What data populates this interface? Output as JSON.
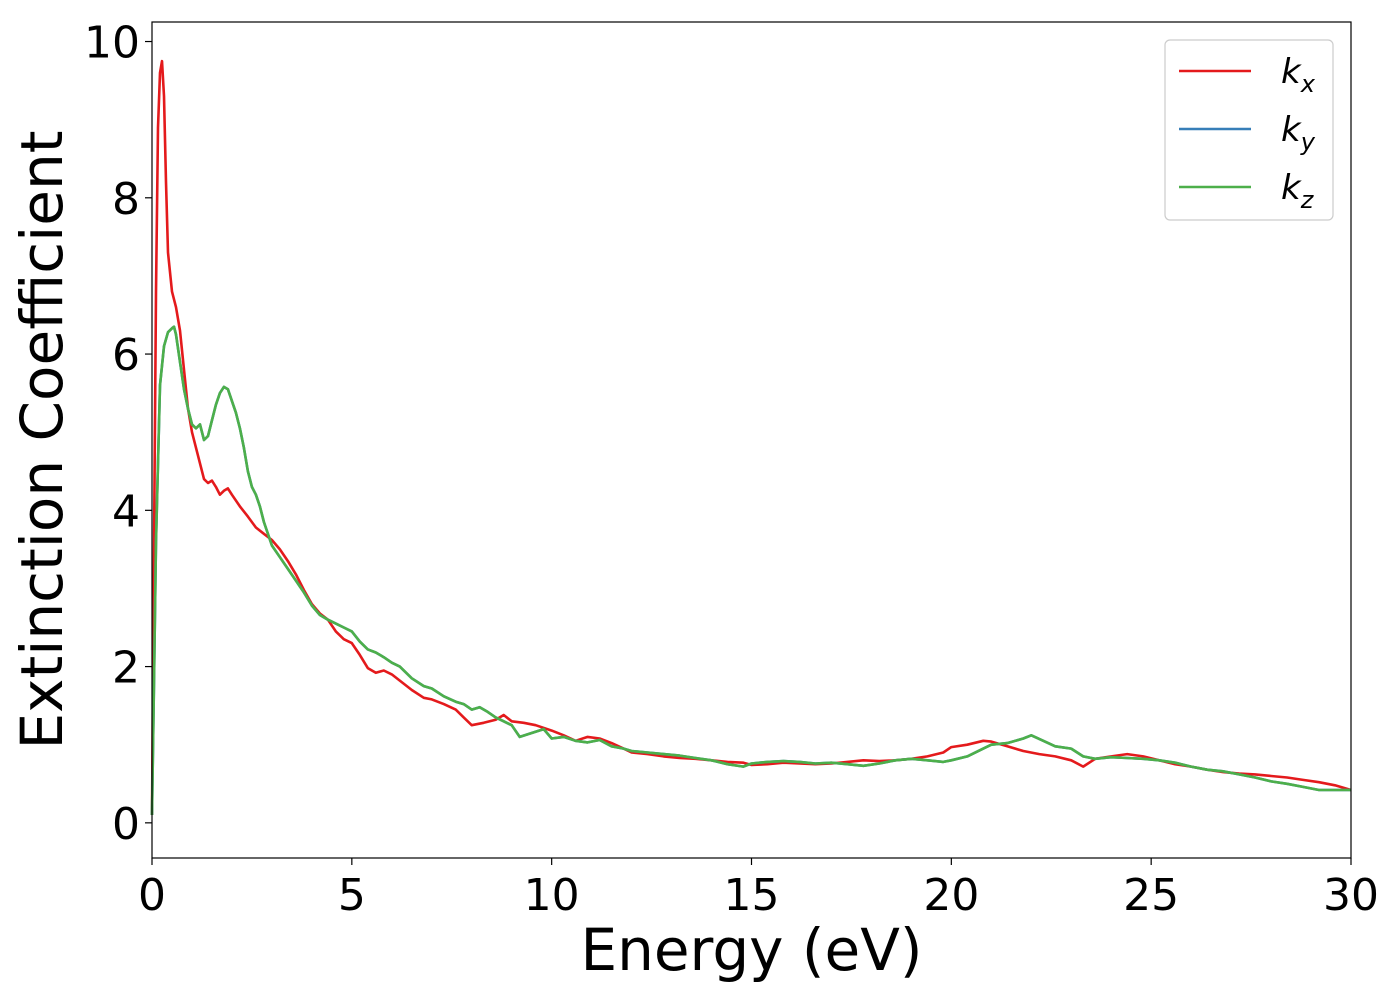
{
  "chart_data": {
    "type": "line",
    "title": "",
    "xlabel": "Energy (eV)",
    "ylabel": "Extinction Coefficient",
    "xlim": [
      0,
      30
    ],
    "ylim": [
      -0.45,
      10.25
    ],
    "xticks": [
      0,
      5,
      10,
      15,
      20,
      25,
      30
    ],
    "xtick_labels": [
      "0",
      "5",
      "10",
      "15",
      "20",
      "25",
      "30"
    ],
    "yticks": [
      0,
      2,
      4,
      6,
      8,
      10
    ],
    "ytick_labels": [
      "0",
      "2",
      "4",
      "6",
      "8",
      "10"
    ],
    "grid": false,
    "legend_position": "top-right",
    "series": [
      {
        "name": "k",
        "subscript": "x",
        "color": "#e41a1c",
        "x": [
          0,
          0.05,
          0.1,
          0.15,
          0.2,
          0.25,
          0.3,
          0.35,
          0.4,
          0.5,
          0.6,
          0.7,
          0.8,
          0.9,
          1.0,
          1.1,
          1.2,
          1.3,
          1.4,
          1.5,
          1.6,
          1.7,
          1.8,
          1.9,
          2.0,
          2.2,
          2.4,
          2.6,
          2.8,
          3.0,
          3.2,
          3.4,
          3.6,
          3.8,
          4.0,
          4.2,
          4.4,
          4.6,
          4.8,
          5.0,
          5.2,
          5.4,
          5.6,
          5.8,
          6.0,
          6.2,
          6.5,
          6.8,
          7.0,
          7.3,
          7.6,
          7.8,
          8.0,
          8.3,
          8.6,
          8.8,
          9.0,
          9.3,
          9.6,
          10.0,
          10.3,
          10.6,
          10.9,
          11.2,
          11.5,
          11.8,
          12.0,
          12.4,
          12.8,
          13.2,
          13.6,
          14.0,
          14.4,
          14.8,
          15.0,
          15.4,
          15.8,
          16.2,
          16.6,
          17.0,
          17.4,
          17.8,
          18.2,
          18.6,
          19.0,
          19.4,
          19.8,
          20.0,
          20.4,
          20.8,
          21.0,
          21.4,
          21.8,
          22.2,
          22.6,
          23.0,
          23.3,
          23.6,
          24.0,
          24.4,
          24.8,
          25.2,
          25.6,
          26.0,
          26.4,
          26.8,
          27.2,
          27.6,
          28.0,
          28.4,
          28.8,
          29.2,
          29.6,
          30.0
        ],
        "y": [
          0.1,
          3.5,
          6.8,
          8.9,
          9.6,
          9.75,
          9.3,
          8.2,
          7.3,
          6.8,
          6.6,
          6.3,
          5.8,
          5.3,
          5.0,
          4.8,
          4.6,
          4.4,
          4.35,
          4.38,
          4.3,
          4.2,
          4.25,
          4.28,
          4.2,
          4.05,
          3.92,
          3.78,
          3.7,
          3.62,
          3.5,
          3.35,
          3.18,
          2.98,
          2.8,
          2.68,
          2.6,
          2.45,
          2.35,
          2.3,
          2.15,
          1.98,
          1.92,
          1.95,
          1.9,
          1.82,
          1.7,
          1.6,
          1.58,
          1.52,
          1.45,
          1.35,
          1.25,
          1.28,
          1.32,
          1.38,
          1.3,
          1.28,
          1.25,
          1.18,
          1.12,
          1.05,
          1.1,
          1.08,
          1.02,
          0.95,
          0.9,
          0.88,
          0.85,
          0.83,
          0.82,
          0.8,
          0.78,
          0.77,
          0.74,
          0.75,
          0.77,
          0.76,
          0.75,
          0.76,
          0.78,
          0.8,
          0.79,
          0.8,
          0.82,
          0.85,
          0.9,
          0.97,
          1.0,
          1.05,
          1.04,
          0.98,
          0.92,
          0.88,
          0.85,
          0.8,
          0.72,
          0.82,
          0.85,
          0.88,
          0.85,
          0.8,
          0.75,
          0.72,
          0.68,
          0.65,
          0.63,
          0.62,
          0.6,
          0.58,
          0.55,
          0.52,
          0.48,
          0.42
        ]
      },
      {
        "name": "k",
        "subscript": "y",
        "color": "#377eb8",
        "x": [
          0,
          0.05,
          0.1,
          0.2,
          0.3,
          0.4,
          0.5,
          0.55,
          0.6,
          0.7,
          0.8,
          0.9,
          1.0,
          1.1,
          1.2,
          1.3,
          1.4,
          1.5,
          1.6,
          1.7,
          1.8,
          1.9,
          2.0,
          2.1,
          2.2,
          2.3,
          2.4,
          2.5,
          2.6,
          2.7,
          2.8,
          3.0,
          3.2,
          3.4,
          3.6,
          3.8,
          4.0,
          4.2,
          4.4,
          4.6,
          4.8,
          5.0,
          5.2,
          5.4,
          5.6,
          5.8,
          6.0,
          6.2,
          6.5,
          6.8,
          7.0,
          7.3,
          7.6,
          7.8,
          8.0,
          8.2,
          8.4,
          8.6,
          8.8,
          9.0,
          9.2,
          9.5,
          9.8,
          10.0,
          10.3,
          10.6,
          10.9,
          11.2,
          11.5,
          11.8,
          12.0,
          12.4,
          12.8,
          13.2,
          13.6,
          14.0,
          14.4,
          14.8,
          15.0,
          15.4,
          15.8,
          16.2,
          16.6,
          17.0,
          17.4,
          17.8,
          18.2,
          18.6,
          19.0,
          19.4,
          19.8,
          20.0,
          20.4,
          20.8,
          21.0,
          21.4,
          21.8,
          22.0,
          22.3,
          22.6,
          23.0,
          23.3,
          23.6,
          24.0,
          24.4,
          24.8,
          25.2,
          25.6,
          26.0,
          26.4,
          26.8,
          27.2,
          27.6,
          28.0,
          28.4,
          28.8,
          29.2,
          29.6,
          30.0
        ],
        "y": [
          0.1,
          1.8,
          3.6,
          5.6,
          6.1,
          6.28,
          6.33,
          6.35,
          6.25,
          5.9,
          5.55,
          5.3,
          5.1,
          5.05,
          5.1,
          4.9,
          4.95,
          5.15,
          5.35,
          5.5,
          5.58,
          5.55,
          5.4,
          5.25,
          5.05,
          4.8,
          4.5,
          4.3,
          4.2,
          4.05,
          3.85,
          3.55,
          3.4,
          3.25,
          3.1,
          2.95,
          2.78,
          2.66,
          2.6,
          2.55,
          2.5,
          2.45,
          2.32,
          2.22,
          2.18,
          2.12,
          2.05,
          2.0,
          1.85,
          1.75,
          1.72,
          1.62,
          1.55,
          1.52,
          1.45,
          1.48,
          1.42,
          1.35,
          1.3,
          1.25,
          1.1,
          1.15,
          1.2,
          1.08,
          1.1,
          1.05,
          1.03,
          1.06,
          0.98,
          0.95,
          0.92,
          0.9,
          0.88,
          0.86,
          0.83,
          0.8,
          0.75,
          0.72,
          0.76,
          0.78,
          0.79,
          0.78,
          0.76,
          0.77,
          0.75,
          0.73,
          0.76,
          0.8,
          0.82,
          0.8,
          0.78,
          0.8,
          0.85,
          0.95,
          1.0,
          1.02,
          1.08,
          1.12,
          1.05,
          0.98,
          0.95,
          0.85,
          0.82,
          0.84,
          0.83,
          0.82,
          0.8,
          0.77,
          0.72,
          0.68,
          0.66,
          0.62,
          0.58,
          0.53,
          0.5,
          0.46,
          0.42,
          0.42,
          0.42
        ]
      },
      {
        "name": "k",
        "subscript": "z",
        "color": "#4daf4a",
        "x": [
          0,
          0.05,
          0.1,
          0.2,
          0.3,
          0.4,
          0.5,
          0.55,
          0.6,
          0.7,
          0.8,
          0.9,
          1.0,
          1.1,
          1.2,
          1.3,
          1.4,
          1.5,
          1.6,
          1.7,
          1.8,
          1.9,
          2.0,
          2.1,
          2.2,
          2.3,
          2.4,
          2.5,
          2.6,
          2.7,
          2.8,
          3.0,
          3.2,
          3.4,
          3.6,
          3.8,
          4.0,
          4.2,
          4.4,
          4.6,
          4.8,
          5.0,
          5.2,
          5.4,
          5.6,
          5.8,
          6.0,
          6.2,
          6.5,
          6.8,
          7.0,
          7.3,
          7.6,
          7.8,
          8.0,
          8.2,
          8.4,
          8.6,
          8.8,
          9.0,
          9.2,
          9.5,
          9.8,
          10.0,
          10.3,
          10.6,
          10.9,
          11.2,
          11.5,
          11.8,
          12.0,
          12.4,
          12.8,
          13.2,
          13.6,
          14.0,
          14.4,
          14.8,
          15.0,
          15.4,
          15.8,
          16.2,
          16.6,
          17.0,
          17.4,
          17.8,
          18.2,
          18.6,
          19.0,
          19.4,
          19.8,
          20.0,
          20.4,
          20.8,
          21.0,
          21.4,
          21.8,
          22.0,
          22.3,
          22.6,
          23.0,
          23.3,
          23.6,
          24.0,
          24.4,
          24.8,
          25.2,
          25.6,
          26.0,
          26.4,
          26.8,
          27.2,
          27.6,
          28.0,
          28.4,
          28.8,
          29.2,
          29.6,
          30.0
        ],
        "y": [
          0.1,
          1.8,
          3.6,
          5.6,
          6.1,
          6.28,
          6.33,
          6.35,
          6.25,
          5.9,
          5.55,
          5.3,
          5.1,
          5.05,
          5.1,
          4.9,
          4.95,
          5.15,
          5.35,
          5.5,
          5.58,
          5.55,
          5.4,
          5.25,
          5.05,
          4.8,
          4.5,
          4.3,
          4.2,
          4.05,
          3.85,
          3.55,
          3.4,
          3.25,
          3.1,
          2.95,
          2.78,
          2.66,
          2.6,
          2.55,
          2.5,
          2.45,
          2.32,
          2.22,
          2.18,
          2.12,
          2.05,
          2.0,
          1.85,
          1.75,
          1.72,
          1.62,
          1.55,
          1.52,
          1.45,
          1.48,
          1.42,
          1.35,
          1.3,
          1.25,
          1.1,
          1.15,
          1.2,
          1.08,
          1.1,
          1.05,
          1.03,
          1.06,
          0.98,
          0.95,
          0.92,
          0.9,
          0.88,
          0.86,
          0.83,
          0.8,
          0.75,
          0.72,
          0.76,
          0.78,
          0.79,
          0.78,
          0.76,
          0.77,
          0.75,
          0.73,
          0.76,
          0.8,
          0.82,
          0.8,
          0.78,
          0.8,
          0.85,
          0.95,
          1.0,
          1.02,
          1.08,
          1.12,
          1.05,
          0.98,
          0.95,
          0.85,
          0.82,
          0.84,
          0.83,
          0.82,
          0.8,
          0.77,
          0.72,
          0.68,
          0.66,
          0.62,
          0.58,
          0.53,
          0.5,
          0.46,
          0.42,
          0.42,
          0.42
        ]
      }
    ]
  }
}
